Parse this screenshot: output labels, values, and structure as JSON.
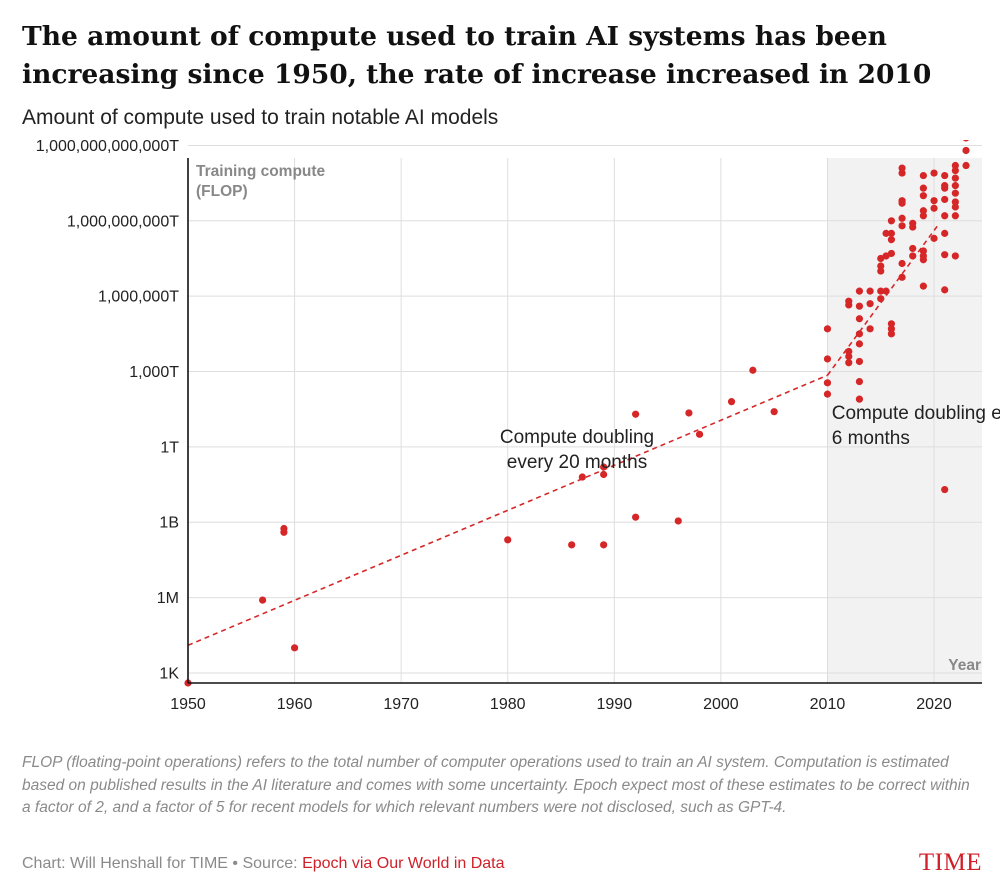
{
  "header": {
    "title": "The amount of compute used to train AI systems has been increasing since 1950, the rate of increase increased in 2010",
    "subtitle": "Amount of compute used to train notable AI models"
  },
  "footer": {
    "note": "FLOP (floating-point operations) refers to the total number of computer operations used to train an AI system. Computation is estimated based on published results in the AI literature and comes with some uncertainty. Epoch expect most of these estimates to be correct within a factor of 2, and a factor of 5 for recent models for which relevant numbers were not disclosed, such as GPT-4.",
    "credit": "Chart: Will Henshall for TIME • Source: ",
    "source_link": "Epoch via Our World in Data",
    "logo": "TIME"
  },
  "colors": {
    "accent": "#d62728",
    "shade": "#f2f2f2",
    "grid": "#dedede",
    "axis": "#111111"
  },
  "chart_data": {
    "type": "scatter",
    "scale": "log10",
    "xlabel": "Year",
    "ylabel_lines": [
      "Training compute",
      "(FLOP)"
    ],
    "xlim": [
      1950,
      2024.5
    ],
    "ylim_log10": [
      2.6,
      23.5
    ],
    "x_ticks": [
      {
        "value": 1950,
        "label": "1950"
      },
      {
        "value": 1960,
        "label": "1960"
      },
      {
        "value": 1970,
        "label": "1970"
      },
      {
        "value": 1980,
        "label": "1980"
      },
      {
        "value": 1990,
        "label": "1990"
      },
      {
        "value": 2000,
        "label": "2000"
      },
      {
        "value": 2010,
        "label": "2010"
      },
      {
        "value": 2020,
        "label": "2020"
      }
    ],
    "y_ticks": [
      {
        "log10": 3,
        "label": "1K"
      },
      {
        "log10": 6,
        "label": "1M"
      },
      {
        "log10": 9,
        "label": "1B"
      },
      {
        "log10": 12,
        "label": "1T"
      },
      {
        "log10": 15,
        "label": "1,000T"
      },
      {
        "log10": 18,
        "label": "1,000,000T"
      },
      {
        "log10": 21,
        "label": "1,000,000,000T"
      },
      {
        "log10": 24,
        "label": "1,000,000,000,000T"
      }
    ],
    "shaded_region": {
      "x_from": 2010,
      "x_to": 2024.5
    },
    "trend_lines": [
      {
        "name": "pre-2010",
        "from": [
          1950,
          4.1
        ],
        "to": [
          2010,
          14.85
        ]
      },
      {
        "name": "post-2010",
        "from": [
          2010,
          14.85
        ],
        "to": [
          2020.5,
          20.9
        ]
      }
    ],
    "annotations": [
      {
        "lines": [
          "Compute doubling",
          "every  20 months"
        ],
        "x": 1986.5,
        "log10": 12.15,
        "align": "middle"
      },
      {
        "lines": [
          "Compute doubling every",
          "6 months"
        ],
        "x": 2010.4,
        "log10": 13.1,
        "align": "start"
      }
    ],
    "points": [
      [
        1950,
        2.6
      ],
      [
        1957,
        5.9
      ],
      [
        1959,
        8.75
      ],
      [
        1959,
        8.6
      ],
      [
        1960,
        4.0
      ],
      [
        1980,
        8.3
      ],
      [
        1986,
        8.1
      ],
      [
        1987,
        10.8
      ],
      [
        1989,
        11.2
      ],
      [
        1989,
        10.9
      ],
      [
        1989,
        8.1
      ],
      [
        1992,
        13.3
      ],
      [
        1992,
        9.2
      ],
      [
        1996,
        9.05
      ],
      [
        1997,
        13.35
      ],
      [
        1998,
        12.5
      ],
      [
        2001,
        13.8
      ],
      [
        2003,
        15.05
      ],
      [
        2005,
        13.4
      ],
      [
        2010,
        16.7
      ],
      [
        2010,
        15.5
      ],
      [
        2010,
        14.55
      ],
      [
        2010,
        14.1
      ],
      [
        2012,
        17.8
      ],
      [
        2012,
        17.65
      ],
      [
        2012,
        15.8
      ],
      [
        2012,
        15.6
      ],
      [
        2012,
        15.35
      ],
      [
        2013,
        18.2
      ],
      [
        2013,
        17.6
      ],
      [
        2013,
        17.1
      ],
      [
        2013,
        16.5
      ],
      [
        2013,
        16.1
      ],
      [
        2013,
        15.4
      ],
      [
        2013,
        14.6
      ],
      [
        2013,
        13.9
      ],
      [
        2014,
        18.2
      ],
      [
        2014,
        17.7
      ],
      [
        2014,
        16.7
      ],
      [
        2015,
        19.5
      ],
      [
        2015,
        19.2
      ],
      [
        2015,
        19.0
      ],
      [
        2015,
        18.2
      ],
      [
        2015,
        17.9
      ],
      [
        2015.5,
        20.5
      ],
      [
        2015.5,
        19.6
      ],
      [
        2015.5,
        18.2
      ],
      [
        2016,
        21.0
      ],
      [
        2016,
        20.5
      ],
      [
        2016,
        20.25
      ],
      [
        2016,
        19.7
      ],
      [
        2016,
        16.9
      ],
      [
        2016,
        16.7
      ],
      [
        2016,
        16.5
      ],
      [
        2017,
        23.1
      ],
      [
        2017,
        22.9
      ],
      [
        2017,
        21.8
      ],
      [
        2017,
        21.7
      ],
      [
        2017,
        21.1
      ],
      [
        2017,
        20.8
      ],
      [
        2017,
        19.3
      ],
      [
        2017,
        18.75
      ],
      [
        2018,
        20.9
      ],
      [
        2018,
        20.75
      ],
      [
        2018,
        19.9
      ],
      [
        2018,
        19.6
      ],
      [
        2019,
        22.8
      ],
      [
        2019,
        22.3
      ],
      [
        2019,
        22.0
      ],
      [
        2019,
        21.4
      ],
      [
        2019,
        21.2
      ],
      [
        2019,
        19.8
      ],
      [
        2019,
        19.6
      ],
      [
        2019,
        19.45
      ],
      [
        2019,
        18.4
      ],
      [
        2020,
        22.9
      ],
      [
        2020,
        21.8
      ],
      [
        2020,
        21.5
      ],
      [
        2020,
        20.3
      ],
      [
        2021,
        22.8
      ],
      [
        2021,
        22.4
      ],
      [
        2021,
        22.3
      ],
      [
        2021,
        21.85
      ],
      [
        2021,
        21.2
      ],
      [
        2021,
        20.5
      ],
      [
        2021,
        19.65
      ],
      [
        2021,
        18.25
      ],
      [
        2021,
        10.3
      ],
      [
        2022,
        23.2
      ],
      [
        2022,
        23.0
      ],
      [
        2022,
        22.7
      ],
      [
        2022,
        22.4
      ],
      [
        2022,
        22.1
      ],
      [
        2022,
        21.75
      ],
      [
        2022,
        21.55
      ],
      [
        2022,
        21.2
      ],
      [
        2022,
        19.6
      ],
      [
        2023,
        24.3
      ],
      [
        2023,
        23.8
      ],
      [
        2023,
        23.2
      ]
    ]
  }
}
